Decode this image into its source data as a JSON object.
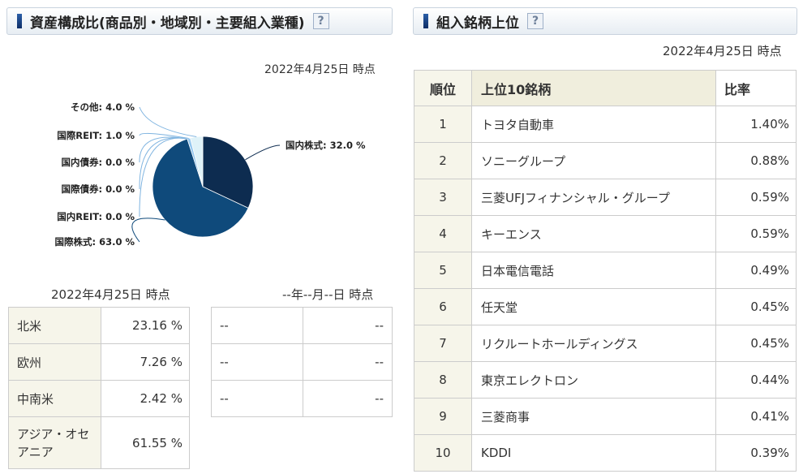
{
  "left_panel": {
    "title": "資産構成比(商品別・地域別・主要組入業種)",
    "help": "?",
    "date": "2022年4月25日 時点"
  },
  "chart_data": {
    "type": "pie",
    "slices": [
      {
        "label": "国内株式: 32.0 %",
        "value": 32.0,
        "color": "#0d2c50"
      },
      {
        "label": "国際株式: 63.0 %",
        "value": 63.0,
        "color": "#0f4a7b"
      },
      {
        "label": "国内REIT: 0.0 %",
        "value": 0.0,
        "color": "#2a6fb0"
      },
      {
        "label": "国際債券: 0.0 %",
        "value": 0.0,
        "color": "#4a8ccc"
      },
      {
        "label": "国内債券: 0.0 %",
        "value": 0.0,
        "color": "#6aaae0"
      },
      {
        "label": "国際REIT: 1.0 %",
        "value": 1.0,
        "color": "#93c6ee"
      },
      {
        "label": "その他: 4.0 %",
        "value": 4.0,
        "color": "#dff2f8"
      }
    ]
  },
  "region_date": "2022年4月25日 時点",
  "regions": [
    {
      "name": "北米",
      "value": "23.16 %"
    },
    {
      "name": "欧州",
      "value": "7.26 %"
    },
    {
      "name": "中南米",
      "value": "2.42 %"
    },
    {
      "name": "アジア・オセアニア",
      "name1": "アジア・オセ",
      "name2": "アニア",
      "value": "61.55 %"
    }
  ],
  "sector_date": "--年--月--日 時点",
  "sectors": [
    {
      "name": "--",
      "value": "--"
    },
    {
      "name": "--",
      "value": "--"
    },
    {
      "name": "--",
      "value": "--"
    }
  ],
  "right_panel": {
    "title": "組入銘柄上位",
    "help": "?",
    "date": "2022年4月25日 時点",
    "headers": {
      "rank": "順位",
      "stock": "上位10銘柄",
      "ratio": "比率"
    },
    "rows": [
      {
        "rank": "1",
        "stock": "トヨタ自動車",
        "ratio": "1.40%"
      },
      {
        "rank": "2",
        "stock": "ソニーグループ",
        "ratio": "0.88%"
      },
      {
        "rank": "3",
        "stock": "三菱UFJフィナンシャル・グループ",
        "ratio": "0.59%"
      },
      {
        "rank": "4",
        "stock": "キーエンス",
        "ratio": "0.59%"
      },
      {
        "rank": "5",
        "stock": "日本電信電話",
        "ratio": "0.49%"
      },
      {
        "rank": "6",
        "stock": "任天堂",
        "ratio": "0.45%"
      },
      {
        "rank": "7",
        "stock": "リクルートホールディングス",
        "ratio": "0.45%"
      },
      {
        "rank": "8",
        "stock": "東京エレクトロン",
        "ratio": "0.44%"
      },
      {
        "rank": "9",
        "stock": "三菱商事",
        "ratio": "0.41%"
      },
      {
        "rank": "10",
        "stock": "KDDI",
        "ratio": "0.39%"
      }
    ]
  }
}
